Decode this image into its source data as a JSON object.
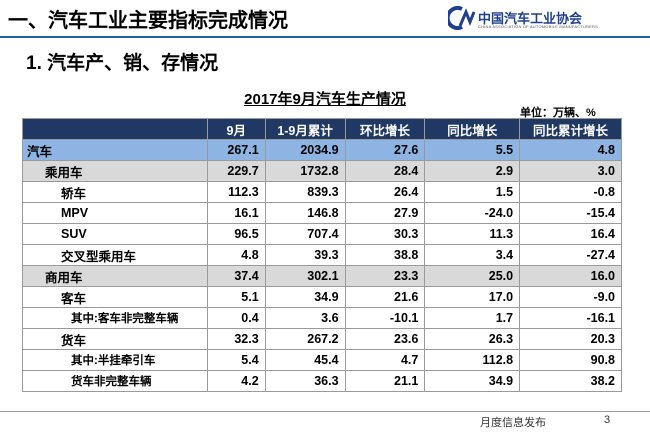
{
  "header": {
    "title": "一、汽车工业主要指标完成情况",
    "logo": "中国汽车工业协会",
    "logo_subtitle": "CHINA ASSOCIATION OF AUTOMOBILE MANUFACTURERS"
  },
  "subtitle": "1. 汽车产、销、存情况",
  "table": {
    "title": "2017年9月汽车生产情况",
    "unit": "单位：万辆、%",
    "columns": [
      "9月",
      "1-9月累计",
      "环比增长",
      "同比增长",
      "同比累计增长"
    ],
    "rows": [
      {
        "label": "汽车",
        "cells": [
          "267.1",
          "2034.9",
          "27.6",
          "5.5",
          "4.8"
        ]
      },
      {
        "label": "乘用车",
        "cells": [
          "229.7",
          "1732.8",
          "28.4",
          "2.9",
          "3.0"
        ]
      },
      {
        "label": "轿车",
        "cells": [
          "112.3",
          "839.3",
          "26.4",
          "1.5",
          "-0.8"
        ]
      },
      {
        "label": "MPV",
        "cells": [
          "16.1",
          "146.8",
          "27.9",
          "-24.0",
          "-15.4"
        ]
      },
      {
        "label": "SUV",
        "cells": [
          "96.5",
          "707.4",
          "30.3",
          "11.3",
          "16.4"
        ]
      },
      {
        "label": "交叉型乘用车",
        "cells": [
          "4.8",
          "39.3",
          "38.8",
          "3.4",
          "-27.4"
        ]
      },
      {
        "label": "商用车",
        "cells": [
          "37.4",
          "302.1",
          "23.3",
          "25.0",
          "16.0"
        ]
      },
      {
        "label": "客车",
        "cells": [
          "5.1",
          "34.9",
          "21.6",
          "17.0",
          "-9.0"
        ]
      },
      {
        "label": "其中:客车非完整车辆",
        "cells": [
          "0.4",
          "3.6",
          "-10.1",
          "1.7",
          "-16.1"
        ]
      },
      {
        "label": "货车",
        "cells": [
          "32.3",
          "267.2",
          "23.6",
          "26.3",
          "20.3"
        ]
      },
      {
        "label": "其中:半挂牵引车",
        "cells": [
          "5.4",
          "45.4",
          "4.7",
          "112.8",
          "90.8"
        ]
      },
      {
        "label": "货车非完整车辆",
        "cells": [
          "4.2",
          "36.3",
          "21.1",
          "34.9",
          "38.2"
        ]
      }
    ]
  },
  "footer": {
    "text": "月度信息发布",
    "page": "3"
  }
}
